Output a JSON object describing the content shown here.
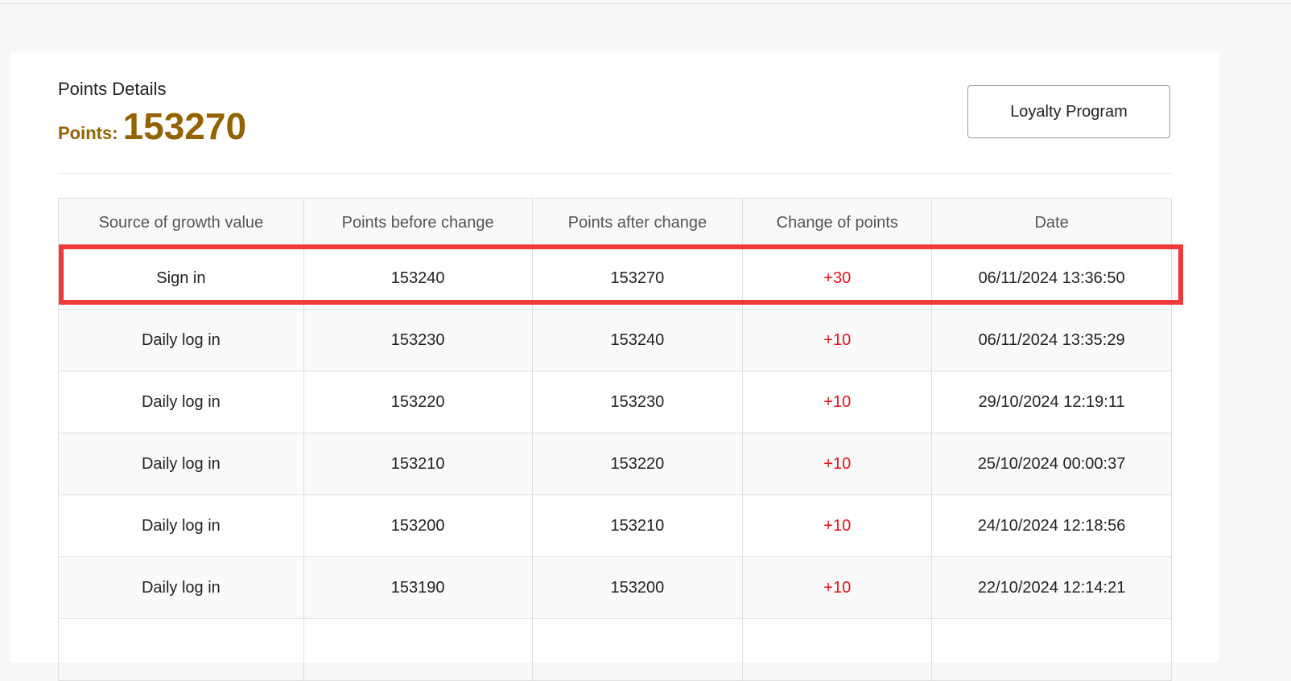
{
  "header": {
    "title": "Points Details",
    "points_label": "Points:",
    "points_value": "153270",
    "loyalty_button": "Loyalty Program"
  },
  "table": {
    "columns": [
      "Source of growth value",
      "Points before change",
      "Points after change",
      "Change of points",
      "Date"
    ],
    "rows": [
      [
        "Sign in",
        "153240",
        "153270",
        "+30",
        "06/11/2024 13:36:50"
      ],
      [
        "Daily log in",
        "153230",
        "153240",
        "+10",
        "06/11/2024 13:35:29"
      ],
      [
        "Daily log in",
        "153220",
        "153230",
        "+10",
        "29/10/2024 12:19:11"
      ],
      [
        "Daily log in",
        "153210",
        "153220",
        "+10",
        "25/10/2024 00:00:37"
      ],
      [
        "Daily log in",
        "153200",
        "153210",
        "+10",
        "24/10/2024 12:18:56"
      ],
      [
        "Daily log in",
        "153190",
        "153200",
        "+10",
        "22/10/2024 12:14:21"
      ],
      [
        "",
        "",
        "",
        "",
        ""
      ]
    ]
  },
  "colors": {
    "accent": "#946200",
    "change_positive": "#e8101a",
    "highlight": "#f03a3a"
  }
}
